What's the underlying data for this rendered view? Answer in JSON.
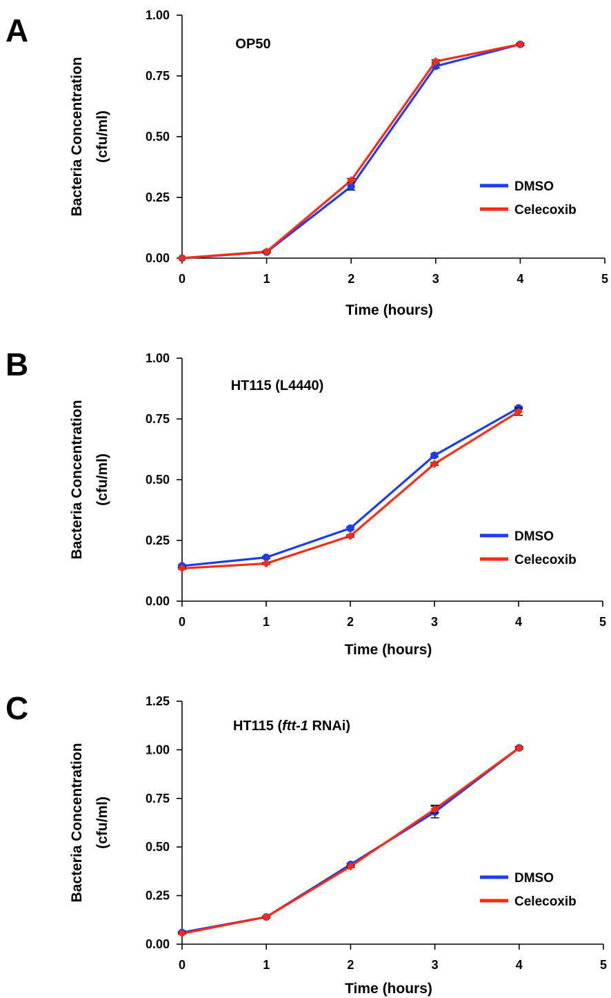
{
  "chart_data": [
    {
      "panel": "A",
      "type": "line",
      "title": "OP50",
      "xlabel": "Time (hours)",
      "ylabel": [
        "Bacteria Concentration",
        "(cfu/ml)"
      ],
      "xlim": [
        0,
        5
      ],
      "xticks": [
        "0",
        "1",
        "2",
        "3",
        "4",
        "5"
      ],
      "ylim": [
        0,
        1.0
      ],
      "yticks": [
        "0.00",
        "0.25",
        "0.50",
        "0.75",
        "1.00"
      ],
      "x": [
        0,
        1,
        2,
        3,
        4
      ],
      "grid": false,
      "legend_position": "right",
      "series": [
        {
          "name": "DMSO",
          "color": "#1a3cf5",
          "marker": "circle",
          "values": [
            0.0,
            0.025,
            0.295,
            0.79,
            0.88
          ],
          "errors": [
            0.0,
            0.004,
            0.015,
            0.008,
            0.005
          ]
        },
        {
          "name": "Celecoxib",
          "color": "#ff2a10",
          "marker": "diamond",
          "values": [
            0.0,
            0.027,
            0.32,
            0.81,
            0.88
          ],
          "errors": [
            0.0,
            0.003,
            0.008,
            0.006,
            0.004
          ]
        }
      ]
    },
    {
      "panel": "B",
      "type": "line",
      "title": "HT115 (L4440)",
      "xlabel": "Time (hours)",
      "ylabel": [
        "Bacteria Concentration",
        "(cfu/ml)"
      ],
      "xlim": [
        0,
        5
      ],
      "xticks": [
        "0",
        "1",
        "2",
        "3",
        "4",
        "5"
      ],
      "ylim": [
        0,
        1.0
      ],
      "yticks": [
        "0.00",
        "0.25",
        "0.50",
        "0.75",
        "1.00"
      ],
      "x": [
        0,
        1,
        2,
        3,
        4
      ],
      "grid": false,
      "legend_position": "right",
      "series": [
        {
          "name": "DMSO",
          "color": "#1a3cf5",
          "marker": "circle",
          "values": [
            0.145,
            0.18,
            0.3,
            0.6,
            0.795
          ],
          "errors": [
            0.004,
            0.004,
            0.005,
            0.006,
            0.005
          ]
        },
        {
          "name": "Celecoxib",
          "color": "#ff2a10",
          "marker": "diamond",
          "values": [
            0.135,
            0.155,
            0.268,
            0.565,
            0.78
          ],
          "errors": [
            0.004,
            0.004,
            0.005,
            0.006,
            0.015
          ]
        }
      ]
    },
    {
      "panel": "C",
      "type": "line",
      "title": "HT115 (ftt-1 RNAi)",
      "title_parts": [
        "HT115 (",
        "ftt-1",
        " RNAi)"
      ],
      "xlabel": "Time (hours)",
      "ylabel": [
        "Bacteria Concentration",
        "(cfu/ml)"
      ],
      "xlim": [
        0,
        5
      ],
      "xticks": [
        "0",
        "1",
        "2",
        "3",
        "4",
        "5"
      ],
      "ylim": [
        0,
        1.25
      ],
      "yticks": [
        "0.00",
        "0.25",
        "0.50",
        "0.75",
        "1.00",
        "1.25"
      ],
      "x": [
        0,
        1,
        2,
        3,
        4
      ],
      "grid": false,
      "legend_position": "right",
      "series": [
        {
          "name": "DMSO",
          "color": "#1a3cf5",
          "marker": "circle",
          "values": [
            0.06,
            0.14,
            0.41,
            0.68,
            1.01
          ],
          "errors": [
            0.004,
            0.004,
            0.006,
            0.03,
            0.006
          ]
        },
        {
          "name": "Celecoxib",
          "color": "#ff2a10",
          "marker": "diamond",
          "values": [
            0.055,
            0.14,
            0.4,
            0.695,
            1.01
          ],
          "errors": [
            0.004,
            0.004,
            0.006,
            0.02,
            0.006
          ]
        }
      ]
    }
  ]
}
